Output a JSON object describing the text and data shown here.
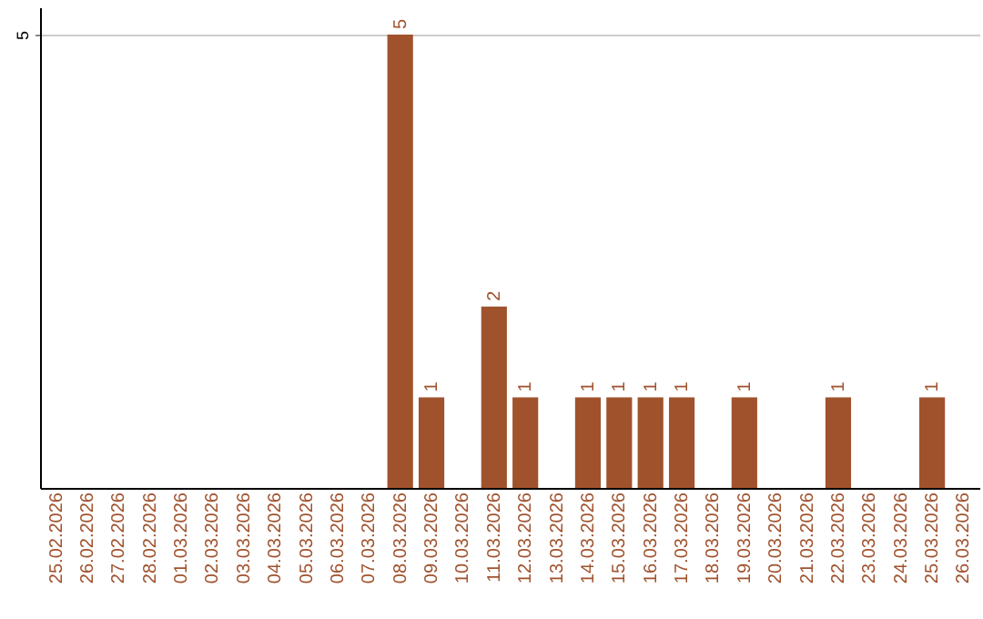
{
  "chart_data": {
    "type": "bar",
    "categories": [
      "25.02.2026",
      "26.02.2026",
      "27.02.2026",
      "28.02.2026",
      "01.03.2026",
      "02.03.2026",
      "03.03.2026",
      "04.03.2026",
      "05.03.2026",
      "06.03.2026",
      "07.03.2026",
      "08.03.2026",
      "09.03.2026",
      "10.03.2026",
      "11.03.2026",
      "12.03.2026",
      "13.03.2026",
      "14.03.2026",
      "15.03.2026",
      "16.03.2026",
      "17.03.2026",
      "18.03.2026",
      "19.03.2026",
      "20.03.2026",
      "21.03.2026",
      "22.03.2026",
      "23.03.2026",
      "24.03.2026",
      "25.03.2026",
      "26.03.2026"
    ],
    "values": [
      null,
      null,
      null,
      null,
      null,
      null,
      null,
      null,
      null,
      null,
      null,
      5,
      1,
      null,
      2,
      1,
      null,
      1,
      1,
      1,
      1,
      null,
      1,
      null,
      null,
      1,
      null,
      null,
      1,
      null
    ],
    "color": "#a0522d",
    "ylim": [
      0,
      5.3
    ],
    "yticks": [
      5
    ],
    "grid": "y",
    "data_labels": true
  }
}
